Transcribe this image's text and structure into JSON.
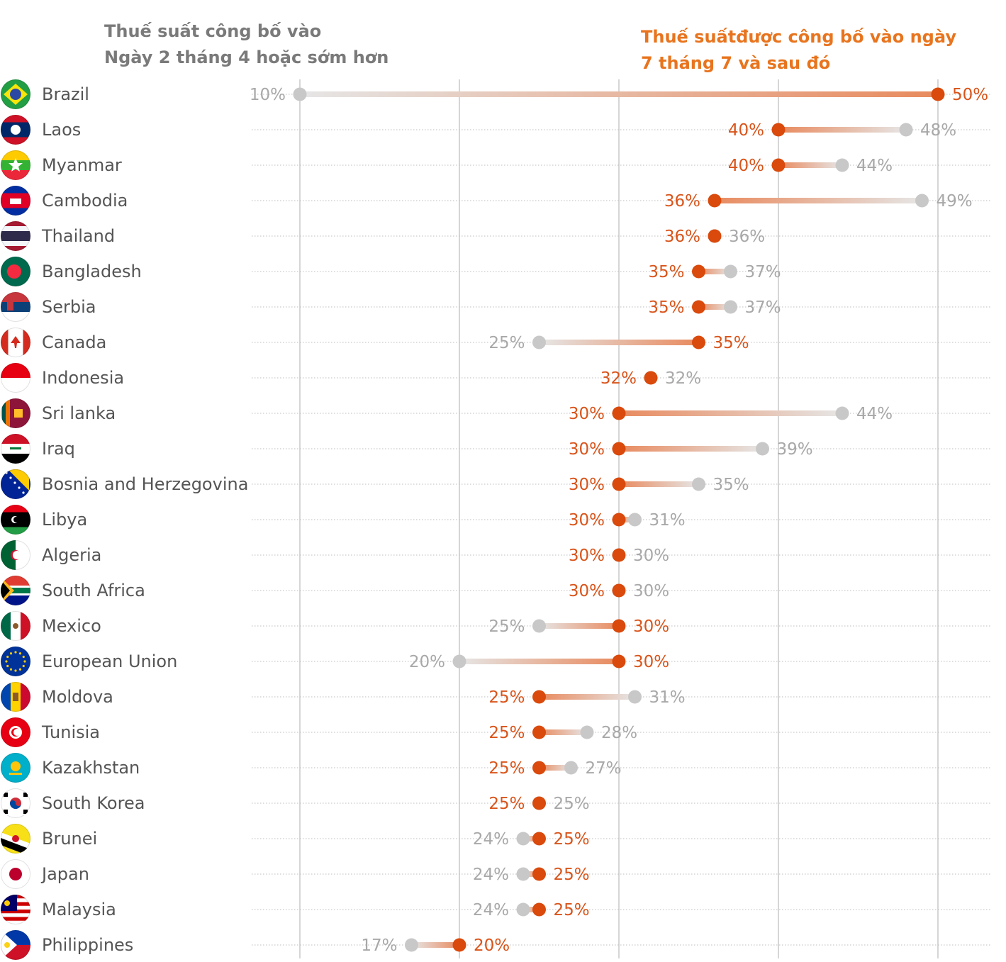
{
  "legend": {
    "old_line1": "Thuế suất công bố vào",
    "old_line2": "Ngày 2 tháng 4 hoặc sớm hơn",
    "new_line1": "Thuế suấtđược công bố vào ngày",
    "new_line2": "7 tháng 7 và sau đó"
  },
  "colors": {
    "old_dot": "#c8c8c8",
    "new_dot": "#d94a0c",
    "old_text": "#a8a8a8",
    "new_text": "#d9541a",
    "country_text": "#555555",
    "gridline": "#c8c8c8",
    "row_rule": "#bdbdbd"
  },
  "chart_data": {
    "type": "dumbbell",
    "unit": "%",
    "xlim": [
      10,
      50
    ],
    "gridlines_at": [
      10,
      20,
      30,
      40,
      50
    ],
    "series": [
      {
        "name": "Thuế suất công bố vào Ngày 2 tháng 4 hoặc sớm hơn",
        "key": "old"
      },
      {
        "name": "Thuế suấtđược công bố vào ngày 7 tháng 7 và sau đó",
        "key": "new"
      }
    ],
    "rows": [
      {
        "country": "Brazil",
        "flag": "brazil-flag-icon",
        "old": 10,
        "new": 50,
        "old_label": "10%",
        "new_label": "50%"
      },
      {
        "country": "Laos",
        "flag": "laos-flag-icon",
        "old": 48,
        "new": 40,
        "old_label": "48%",
        "new_label": "40%"
      },
      {
        "country": "Myanmar",
        "flag": "myanmar-flag-icon",
        "old": 44,
        "new": 40,
        "old_label": "44%",
        "new_label": "40%"
      },
      {
        "country": "Cambodia",
        "flag": "cambodia-flag-icon",
        "old": 49,
        "new": 36,
        "old_label": "49%",
        "new_label": "36%"
      },
      {
        "country": "Thailand",
        "flag": "thailand-flag-icon",
        "old": 36,
        "new": 36,
        "old_label": "36%",
        "new_label": "36%"
      },
      {
        "country": "Bangladesh",
        "flag": "bangladesh-flag-icon",
        "old": 37,
        "new": 35,
        "old_label": "37%",
        "new_label": "35%"
      },
      {
        "country": "Serbia",
        "flag": "serbia-flag-icon",
        "old": 37,
        "new": 35,
        "old_label": "37%",
        "new_label": "35%"
      },
      {
        "country": "Canada",
        "flag": "canada-flag-icon",
        "old": 25,
        "new": 35,
        "old_label": "25%",
        "new_label": "35%"
      },
      {
        "country": "Indonesia",
        "flag": "indonesia-flag-icon",
        "old": 32,
        "new": 32,
        "old_label": "32%",
        "new_label": "32%"
      },
      {
        "country": "Sri lanka",
        "flag": "sri-lanka-flag-icon",
        "old": 44,
        "new": 30,
        "old_label": "44%",
        "new_label": "30%"
      },
      {
        "country": "Iraq",
        "flag": "iraq-flag-icon",
        "old": 39,
        "new": 30,
        "old_label": "39%",
        "new_label": "30%"
      },
      {
        "country": "Bosnia and Herzegovina",
        "flag": "bosnia-flag-icon",
        "old": 35,
        "new": 30,
        "old_label": "35%",
        "new_label": "30%"
      },
      {
        "country": "Libya",
        "flag": "libya-flag-icon",
        "old": 31,
        "new": 30,
        "old_label": "31%",
        "new_label": "30%"
      },
      {
        "country": "Algeria",
        "flag": "algeria-flag-icon",
        "old": 30,
        "new": 30,
        "old_label": "30%",
        "new_label": "30%"
      },
      {
        "country": "South Africa",
        "flag": "south-africa-flag-icon",
        "old": 30,
        "new": 30,
        "old_label": "30%",
        "new_label": "30%"
      },
      {
        "country": "Mexico",
        "flag": "mexico-flag-icon",
        "old": 25,
        "new": 30,
        "old_label": "25%",
        "new_label": "30%"
      },
      {
        "country": "European Union",
        "flag": "eu-flag-icon",
        "old": 20,
        "new": 30,
        "old_label": "20%",
        "new_label": "30%"
      },
      {
        "country": "Moldova",
        "flag": "moldova-flag-icon",
        "old": 31,
        "new": 25,
        "old_label": "31%",
        "new_label": "25%"
      },
      {
        "country": "Tunisia",
        "flag": "tunisia-flag-icon",
        "old": 28,
        "new": 25,
        "old_label": "28%",
        "new_label": "25%"
      },
      {
        "country": "Kazakhstan",
        "flag": "kazakhstan-flag-icon",
        "old": 27,
        "new": 25,
        "old_label": "27%",
        "new_label": "25%"
      },
      {
        "country": "South Korea",
        "flag": "south-korea-flag-icon",
        "old": 25,
        "new": 25,
        "old_label": "25%",
        "new_label": "25%"
      },
      {
        "country": "Brunei",
        "flag": "brunei-flag-icon",
        "old": 24,
        "new": 25,
        "old_label": "24%",
        "new_label": "25%"
      },
      {
        "country": "Japan",
        "flag": "japan-flag-icon",
        "old": 24,
        "new": 25,
        "old_label": "24%",
        "new_label": "25%"
      },
      {
        "country": "Malaysia",
        "flag": "malaysia-flag-icon",
        "old": 24,
        "new": 25,
        "old_label": "24%",
        "new_label": "25%"
      },
      {
        "country": "Philippines",
        "flag": "philippines-flag-icon",
        "old": 17,
        "new": 20,
        "old_label": "17%",
        "new_label": "20%"
      }
    ]
  }
}
